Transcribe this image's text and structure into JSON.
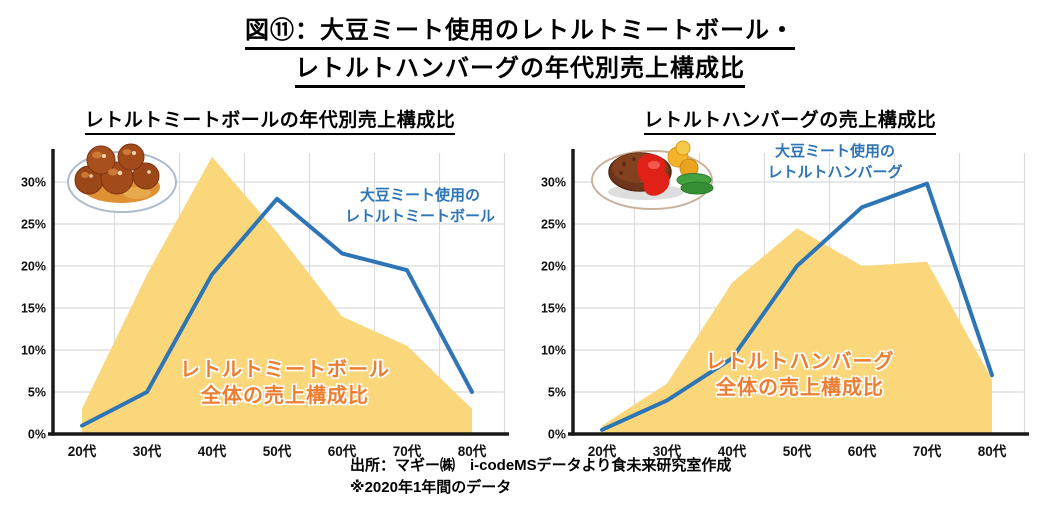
{
  "page": {
    "title_line1": "図⑪：大豆ミート使用のレトルトミートボール・",
    "title_line2": "レトルトハンバーグの年代別売上構成比"
  },
  "footer": {
    "source_line": "出所：マギー㈱　i-codeMSデータより食未来研究室作成",
    "note_line": "※2020年1年間のデータ"
  },
  "colors": {
    "line_blue": "#2E75B6",
    "area_yellow": "#FBD77C",
    "label_orange": "#ED7D31",
    "grid_gray": "#DADADA",
    "axis_black": "#1A1A1A"
  },
  "chart_data": [
    {
      "type": "area",
      "subtype": "area + line combo",
      "title": "レトルトミートボールの年代別売上構成比",
      "categories": [
        "20代",
        "30代",
        "40代",
        "50代",
        "60代",
        "70代",
        "80代"
      ],
      "series": [
        {
          "name": "レトルトミートボール全体の売上構成比",
          "style": "area",
          "color": "#FBD77C",
          "values": [
            3,
            19,
            33,
            24,
            14,
            10.5,
            3
          ]
        },
        {
          "name": "大豆ミート使用のレトルトミートボール",
          "style": "line",
          "color": "#2E75B6",
          "values": [
            1,
            5,
            19,
            28,
            21.5,
            19.5,
            5
          ]
        }
      ],
      "y_ticks": [
        "0%",
        "5%",
        "10%",
        "15%",
        "20%",
        "25%",
        "30%"
      ],
      "ylim": [
        0,
        33.5
      ],
      "xlabel": "",
      "ylabel": "",
      "grid": true,
      "legend": "none (inline text annotations)",
      "annotations": {
        "line_label": "大豆ミート使用の\nレトルトミートボール",
        "area_label": "レトルトミートボール\n全体の売上構成比"
      },
      "icon": "meatballs-plate"
    },
    {
      "type": "area",
      "subtype": "area + line combo",
      "title": "レトルトハンバーグの売上構成比",
      "categories": [
        "20代",
        "30代",
        "40代",
        "50代",
        "60代",
        "70代",
        "80代"
      ],
      "series": [
        {
          "name": "レトルトハンバーグ全体の売上構成比",
          "style": "area",
          "color": "#FBD77C",
          "values": [
            1,
            6,
            18,
            24.5,
            20,
            20.5,
            6.5
          ]
        },
        {
          "name": "大豆ミート使用のレトルトハンバーグ",
          "style": "line",
          "color": "#2E75B6",
          "values": [
            0.5,
            4,
            9,
            20,
            27,
            29.8,
            7
          ]
        }
      ],
      "y_ticks": [
        "0%",
        "5%",
        "10%",
        "15%",
        "20%",
        "25%",
        "30%"
      ],
      "ylim": [
        0,
        33.5
      ],
      "xlabel": "",
      "ylabel": "",
      "grid": true,
      "legend": "none (inline text annotations)",
      "annotations": {
        "line_label": "大豆ミート使用の\nレトルトハンバーグ",
        "area_label": "レトルトハンバーグ\n全体の売上構成比"
      },
      "icon": "hamburg-steak-plate"
    }
  ]
}
